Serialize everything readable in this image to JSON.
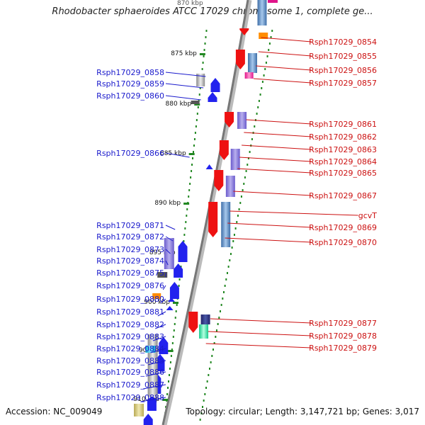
{
  "title": "Rhodobacter sphaeroides ATCC 17029 chromosome 1, complete ge...",
  "scale": {
    "top_partial": "870 kbp",
    "ticks": [
      "875 kbp",
      "880 kbp",
      "885 kbp",
      "890 kbp",
      "895 kbp",
      "900 kbp",
      "905 kbp",
      "910 kbp"
    ]
  },
  "left_genes": [
    "Rsph17029_0858",
    "Rsph17029_0859",
    "Rsph17029_0860",
    "Rsph17029_0866",
    "Rsph17029_0871",
    "Rsph17029_0872",
    "Rsph17029_0873",
    "Rsph17029_0874",
    "Rsph17029_0875",
    "Rsph17029_0876",
    "Rsph17029_0880",
    "Rsph17029_0881",
    "Rsph17029_0882",
    "Rsph17029_0883",
    "Rsph17029_0884",
    "Rsph17029_0885",
    "Rsph17029_0886",
    "Rsph17029_0887",
    "Rsph17029_0888"
  ],
  "right_genes": [
    "Rsph17029_0854",
    "Rsph17029_0855",
    "Rsph17029_0856",
    "Rsph17029_0857",
    "Rsph17029_0861",
    "Rsph17029_0862",
    "Rsph17029_0863",
    "Rsph17029_0864",
    "Rsph17029_0865",
    "Rsph17029_0867",
    "gcvT",
    "Rsph17029_0869",
    "Rsph17029_0870",
    "Rsph17029_0877",
    "Rsph17029_0878",
    "Rsph17029_0879"
  ],
  "footer": {
    "accession": "Accession: NC_009049",
    "topology": "Topology: circular; Length: 3,147,721 bp; Genes: 3,017"
  },
  "colors": {
    "forward_strand": "#2222ee",
    "reverse_strand": "#ee1111",
    "left_label": "#1a1acc",
    "right_label": "#cc1111",
    "backbone": "#9a9a9a",
    "dots": "#228822"
  }
}
